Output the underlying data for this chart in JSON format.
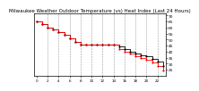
{
  "title": "Milwaukee Weather Outdoor Temperature (vs) Heat Index (Last 24 Hours)",
  "title_fontsize": 4.0,
  "bg_color": "#ffffff",
  "line_color_temp": "#000000",
  "line_color_heat": "#ff0000",
  "ylim": [
    20,
    72
  ],
  "yticks": [
    25,
    30,
    35,
    40,
    45,
    50,
    55,
    60,
    65,
    70
  ],
  "ytick_fontsize": 3.2,
  "xtick_fontsize": 3.0,
  "hours": [
    0,
    1,
    2,
    3,
    4,
    5,
    6,
    7,
    8,
    9,
    10,
    11,
    12,
    13,
    14,
    15,
    16,
    17,
    18,
    19,
    20,
    21,
    22,
    23
  ],
  "temp": [
    65,
    63,
    60,
    58,
    56,
    54,
    51,
    48,
    46,
    46,
    46,
    46,
    46,
    46,
    46,
    44,
    42,
    40,
    38,
    37,
    36,
    34,
    32,
    28
  ],
  "heat": [
    65,
    63,
    60,
    58,
    56,
    54,
    51,
    48,
    46,
    46,
    46,
    46,
    46,
    46,
    46,
    42,
    40,
    38,
    36,
    35,
    33,
    31,
    28,
    24
  ],
  "grid_color": "#999999",
  "grid_hours": [
    2,
    4,
    6,
    8,
    10,
    12,
    14,
    16,
    18,
    20,
    22
  ],
  "xtick_hours": [
    0,
    2,
    4,
    6,
    8,
    10,
    12,
    14,
    16,
    18,
    20,
    22
  ]
}
